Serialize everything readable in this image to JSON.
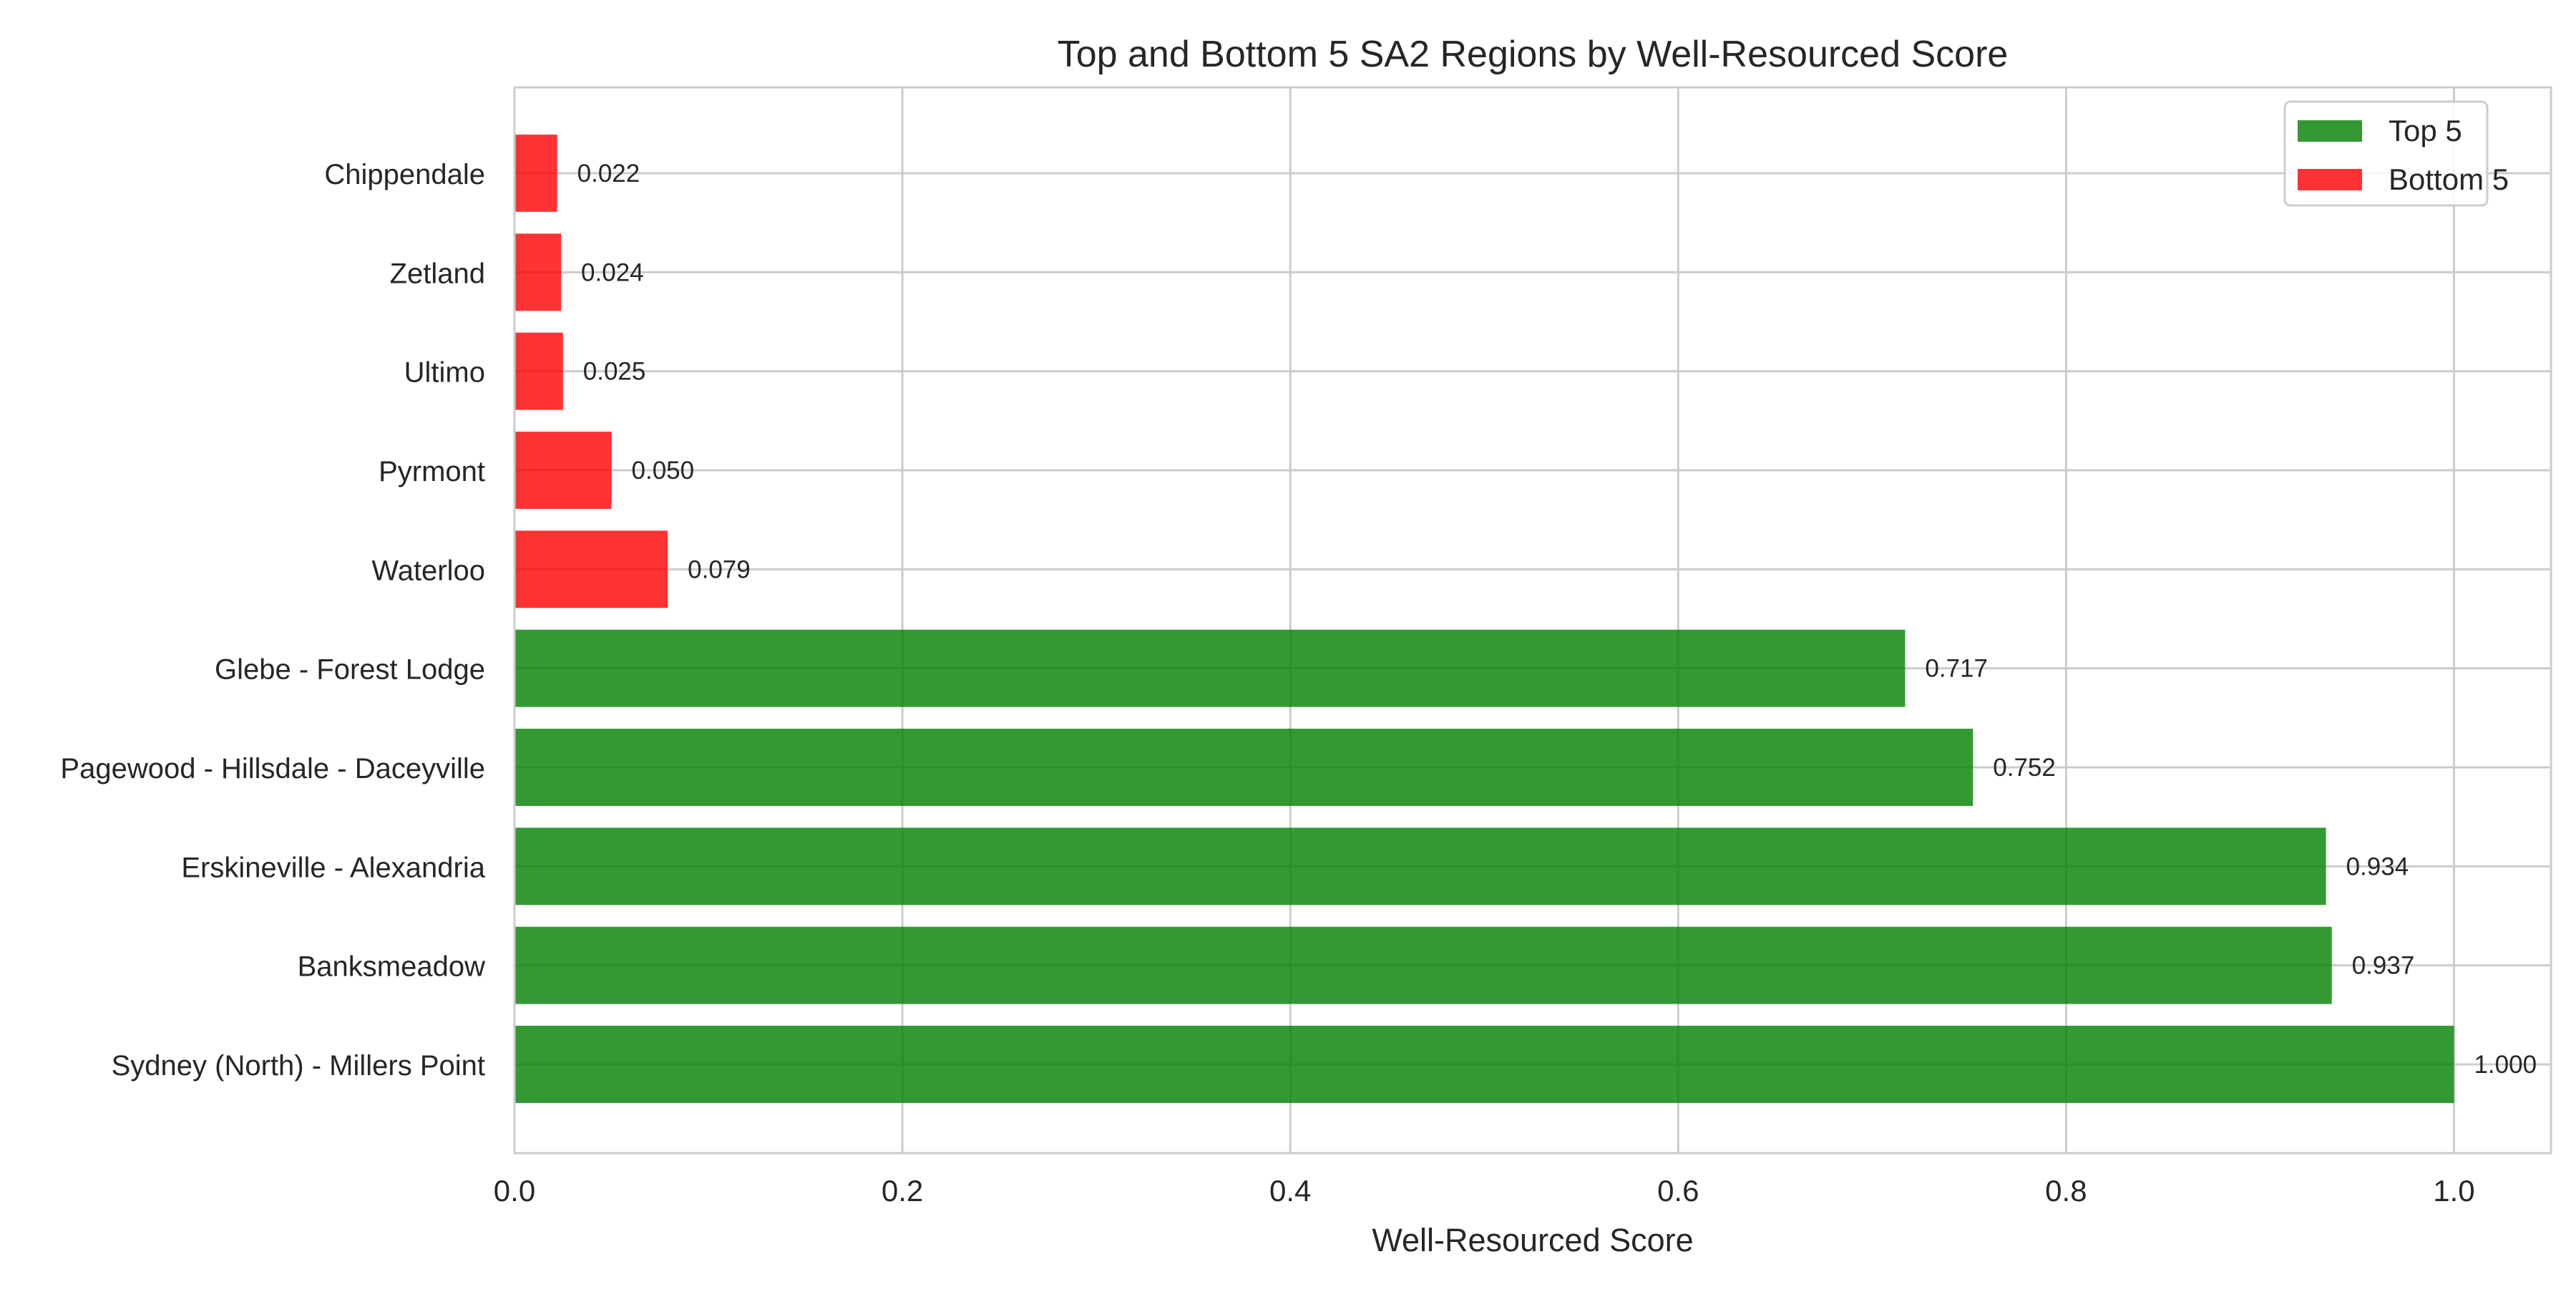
{
  "chart_data": {
    "type": "bar",
    "orientation": "horizontal",
    "title": "Top and Bottom 5 SA2 Regions by Well-Resourced Score",
    "xlabel": "Well-Resourced Score",
    "ylabel": "",
    "xlim": [
      0,
      1.05
    ],
    "xticks": [
      0.0,
      0.2,
      0.4,
      0.6,
      0.8,
      1.0
    ],
    "xtick_labels": [
      "0.0",
      "0.2",
      "0.4",
      "0.6",
      "0.8",
      "1.0"
    ],
    "grid": true,
    "legend_position": "top-right",
    "categories": [
      "Sydney (North) - Millers Point",
      "Banksmeadow",
      "Erskineville - Alexandria",
      "Pagewood - Hillsdale - Daceyville",
      "Glebe - Forest Lodge",
      "Waterloo",
      "Pyrmont",
      "Ultimo",
      "Zetland",
      "Chippendale"
    ],
    "values": [
      1.0,
      0.937,
      0.934,
      0.752,
      0.717,
      0.079,
      0.05,
      0.025,
      0.024,
      0.022
    ],
    "value_labels": [
      "1.000",
      "0.937",
      "0.934",
      "0.752",
      "0.717",
      "0.079",
      "0.050",
      "0.025",
      "0.024",
      "0.022"
    ],
    "groups": [
      "top",
      "top",
      "top",
      "top",
      "top",
      "bottom",
      "bottom",
      "bottom",
      "bottom",
      "bottom"
    ],
    "series": [
      {
        "name": "Top 5",
        "key": "top",
        "color": "#008000"
      },
      {
        "name": "Bottom 5",
        "key": "bottom",
        "color": "#ff0000"
      }
    ],
    "bar_opacity": 0.8
  }
}
